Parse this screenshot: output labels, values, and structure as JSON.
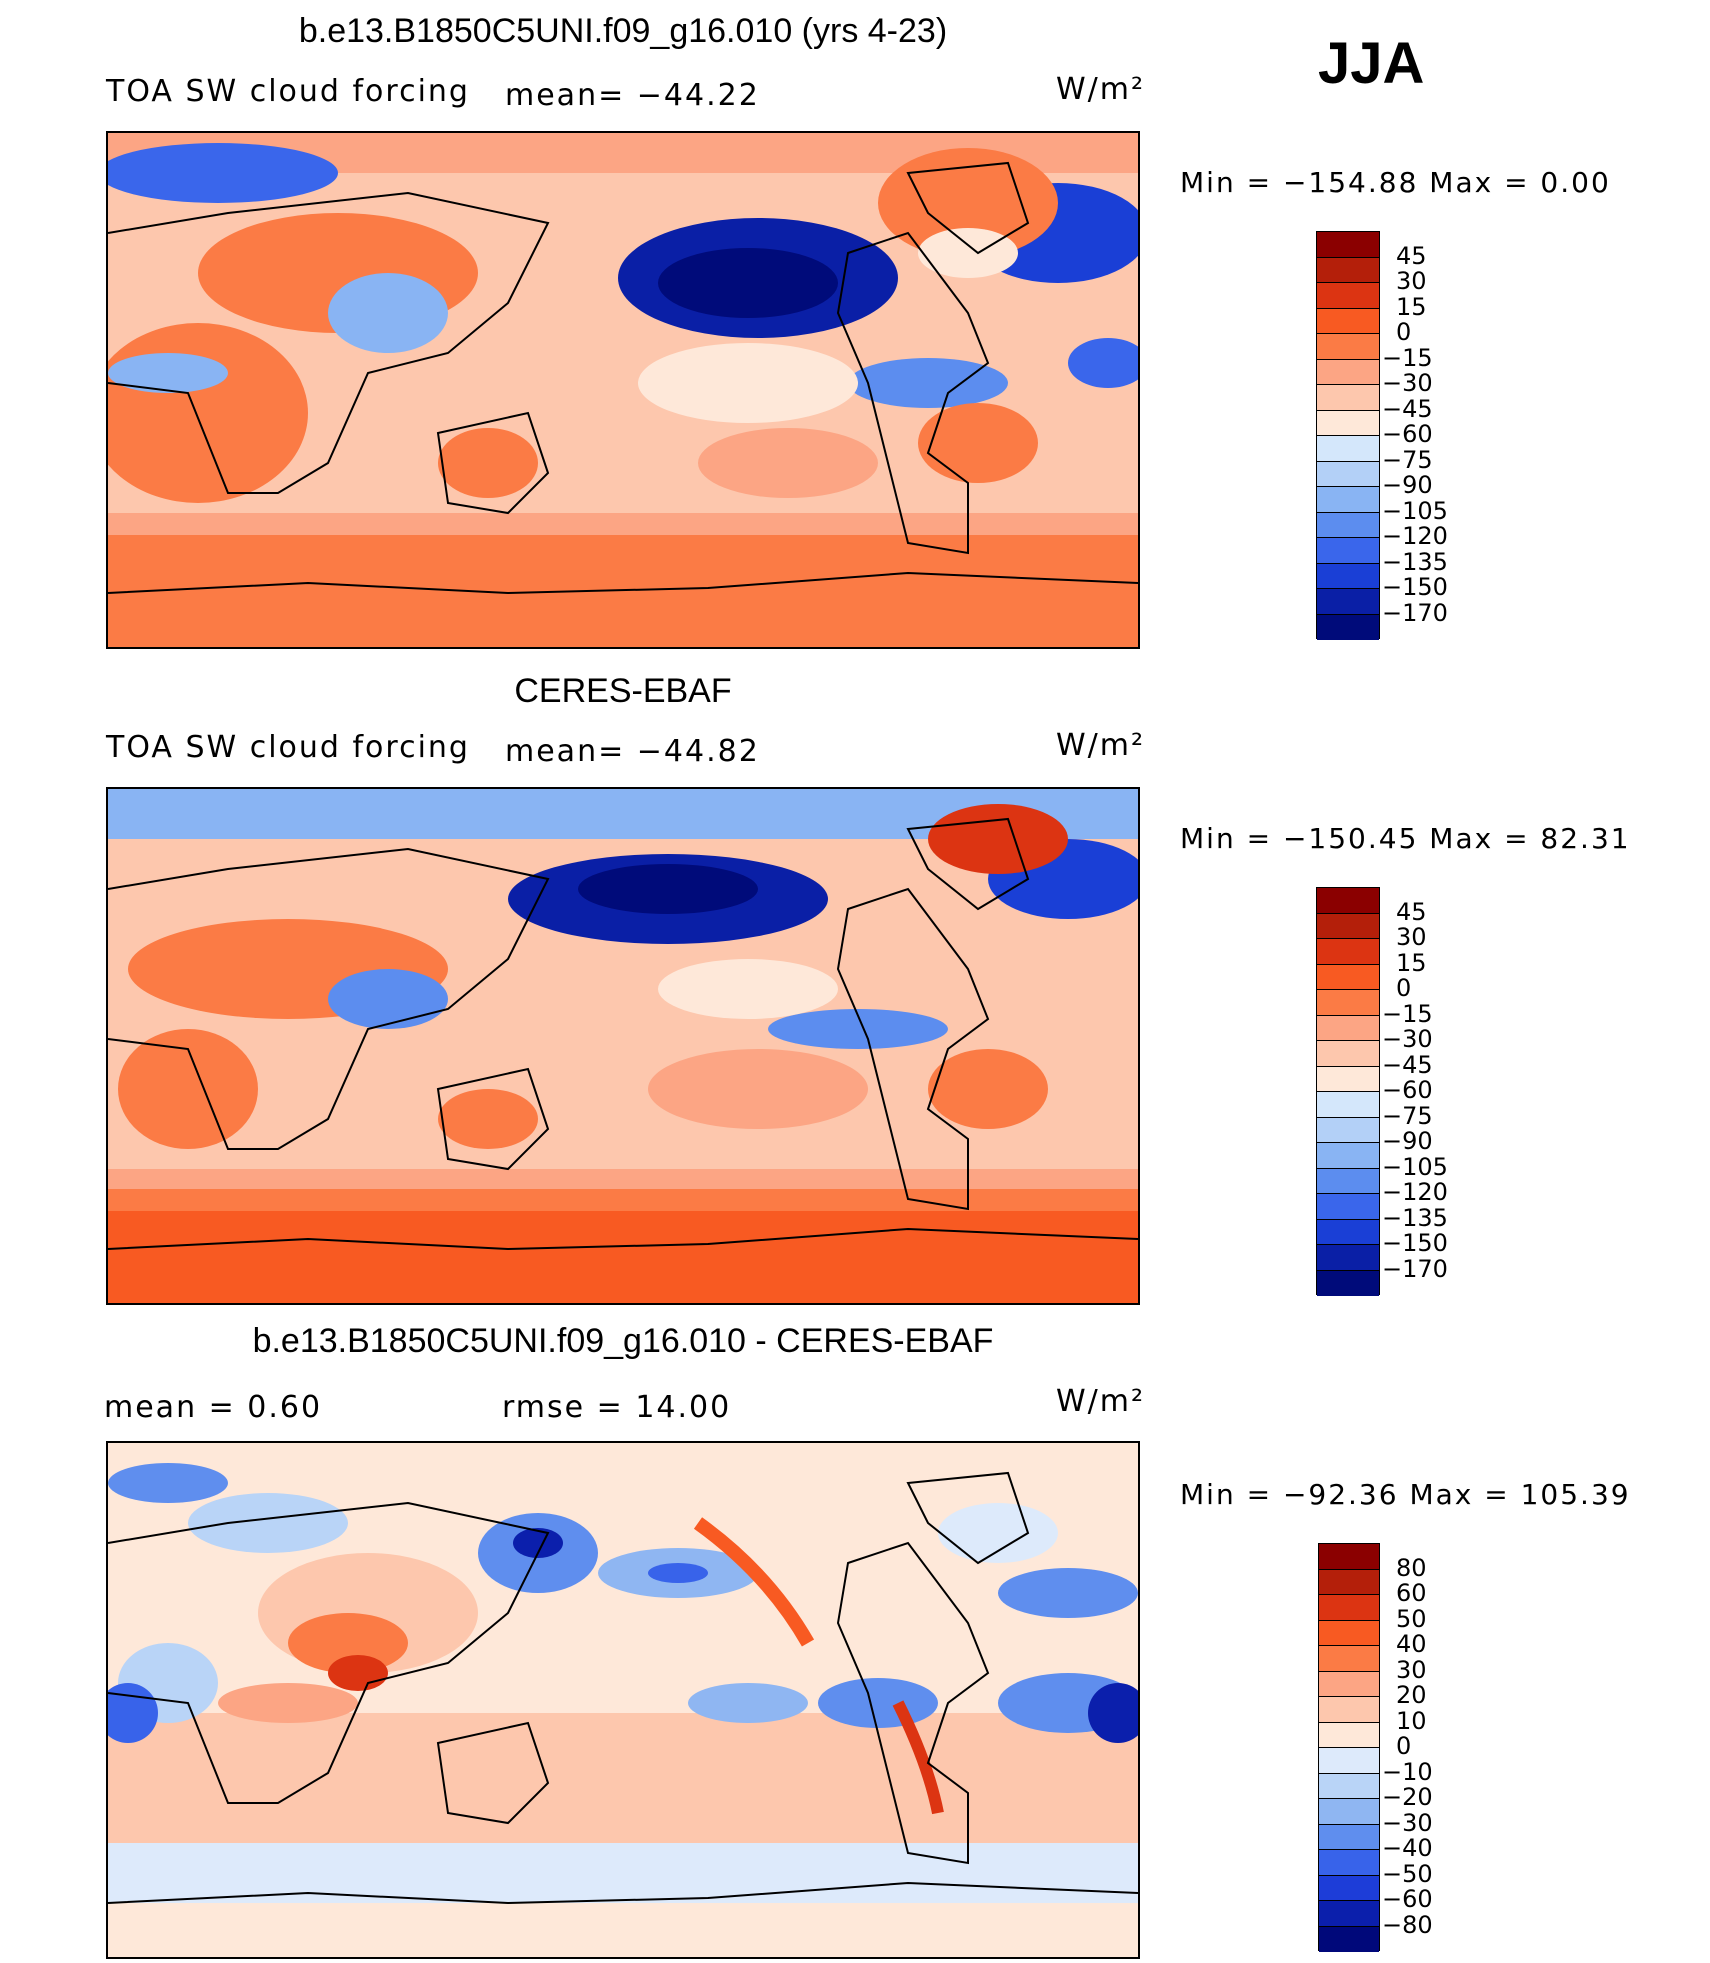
{
  "season": "JJA",
  "units_label": "W/m²",
  "panels": [
    {
      "title": "b.e13.B1850C5UNI.f09_g16.010 (yrs 4-23)",
      "left_label": "TOA SW cloud forcing",
      "stat_label": "mean=",
      "stat_value": "−44.22",
      "minmax": "Min  =  −154.88  Max  =      0.00",
      "colorbar": [
        "45",
        "30",
        "15",
        "0",
        "−15",
        "−30",
        "−45",
        "−60",
        "−75",
        "−90",
        "−105",
        "−120",
        "−135",
        "−150",
        "−170"
      ]
    },
    {
      "title": "CERES-EBAF",
      "left_label": "TOA SW cloud forcing",
      "stat_label": "mean=",
      "stat_value": "−44.82",
      "minmax": "Min  =  −150.45  Max  =    82.31",
      "colorbar": [
        "45",
        "30",
        "15",
        "0",
        "−15",
        "−30",
        "−45",
        "−60",
        "−75",
        "−90",
        "−105",
        "−120",
        "−135",
        "−150",
        "−170"
      ]
    },
    {
      "title": "b.e13.B1850C5UNI.f09_g16.010 - CERES-EBAF",
      "left_label": "mean  =     0.60",
      "stat_label": "rmse  =",
      "stat_value": "14.00",
      "minmax": "Min  =  −92.36  Max  =  105.39",
      "colorbar": [
        "80",
        "60",
        "50",
        "40",
        "30",
        "20",
        "10",
        "0",
        "−10",
        "−20",
        "−30",
        "−40",
        "−50",
        "−60",
        "−80"
      ]
    }
  ],
  "colors": {
    "abs_scale": [
      "#8b0000",
      "#b41f0a",
      "#dc3412",
      "#f85a22",
      "#fb7b45",
      "#fca584",
      "#fdc7ad",
      "#fee8d9",
      "#d4e7fb",
      "#b3d0f7",
      "#89b4f3",
      "#5c8def",
      "#3a66eb",
      "#1a3fd6",
      "#0a1fa6",
      "#000b7a"
    ],
    "diff_scale": [
      "#8b0000",
      "#b41f0a",
      "#dc3412",
      "#f85a22",
      "#fb7b45",
      "#fca584",
      "#fdc7ad",
      "#fee8d9",
      "#ddeafb",
      "#b9d4f7",
      "#8fb6f2",
      "#5f8eee",
      "#3863ea",
      "#1d3dd8",
      "#0b1fac",
      "#00087a"
    ]
  }
}
